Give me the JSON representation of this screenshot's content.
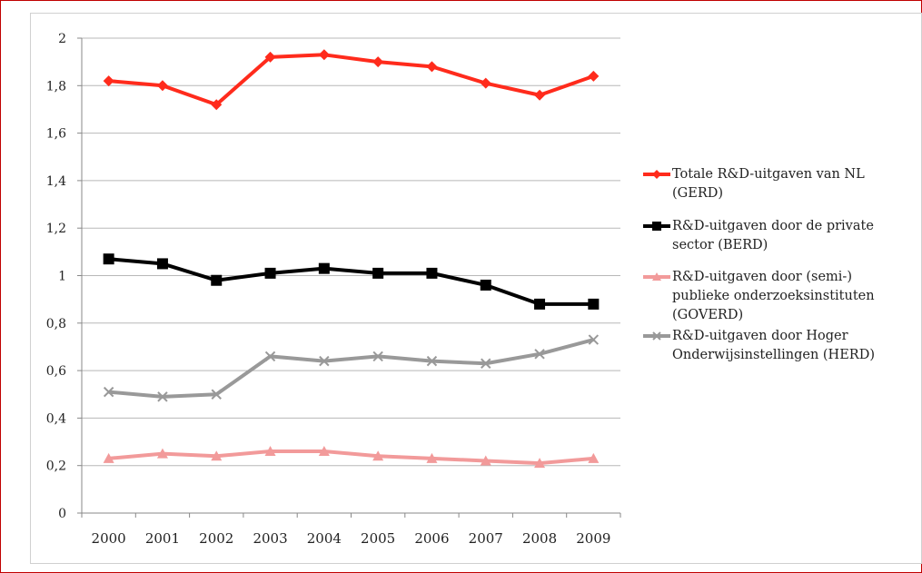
{
  "chart_data": {
    "type": "line",
    "title": "",
    "xlabel": "",
    "ylabel": "",
    "ylim": [
      0,
      2
    ],
    "yticks": [
      "0",
      "0,2",
      "0,4",
      "0,6",
      "0,8",
      "1",
      "1,2",
      "1,4",
      "1,6",
      "1,8",
      "2"
    ],
    "categories": [
      "2000",
      "2001",
      "2002",
      "2003",
      "2004",
      "2005",
      "2006",
      "2007",
      "2008",
      "2009"
    ],
    "grid": true,
    "legend_position": "right",
    "series": [
      {
        "name": "Totale R&D-uitgaven van NL (GERD)",
        "name_lines": [
          "Totale R&D-uitgaven van NL",
          "(GERD)"
        ],
        "color": "#ff2b1c",
        "marker": "diamond",
        "values": [
          1.82,
          1.8,
          1.72,
          1.92,
          1.93,
          1.9,
          1.88,
          1.81,
          1.76,
          1.84
        ]
      },
      {
        "name": "R&D-uitgaven door de private sector (BERD)",
        "name_lines": [
          "R&D-uitgaven door de private",
          "sector (BERD)"
        ],
        "color": "#000000",
        "marker": "square",
        "values": [
          1.07,
          1.05,
          0.98,
          1.01,
          1.03,
          1.01,
          1.01,
          0.96,
          0.88,
          0.88
        ]
      },
      {
        "name": "R&D-uitgaven door (semi-) publieke onderzoeksinstituten (GOVERD)",
        "name_lines": [
          "R&D-uitgaven door (semi-)",
          "publieke onderzoeksinstituten",
          "(GOVERD)"
        ],
        "color": "#f29a9a",
        "marker": "triangle",
        "values": [
          0.23,
          0.25,
          0.24,
          0.26,
          0.26,
          0.24,
          0.23,
          0.22,
          0.21,
          0.23
        ]
      },
      {
        "name": "R&D-uitgaven door Hoger Onderwijsinstellingen (HERD)",
        "name_lines": [
          "R&D-uitgaven door Hoger",
          "Onderwijsinstellingen (HERD)"
        ],
        "color": "#999999",
        "marker": "x",
        "values": [
          0.51,
          0.49,
          0.5,
          0.66,
          0.64,
          0.66,
          0.64,
          0.63,
          0.67,
          0.73
        ]
      }
    ]
  }
}
